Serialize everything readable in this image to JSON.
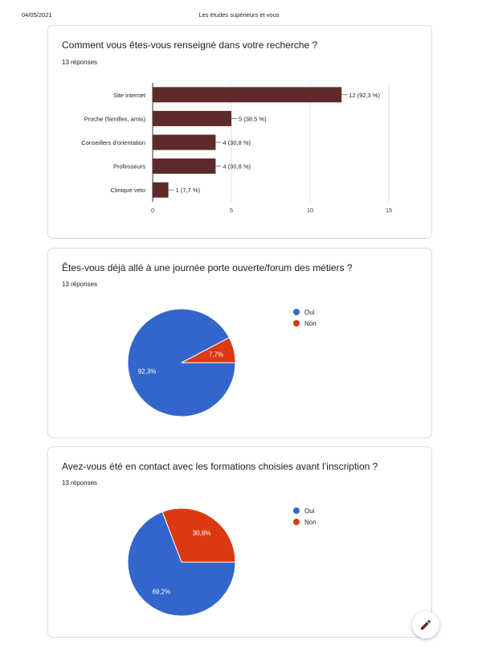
{
  "header": {
    "date": "04/05/2021",
    "title": "Les études supérieurs et vous"
  },
  "colors": {
    "bar": "#5e2a2b",
    "blue": "#3366cc",
    "red": "#dc3912",
    "grid": "#e0e0e0"
  },
  "cards": [
    {
      "question": "Comment vous êtes-vous renseigné dans votre recherche ?",
      "responses": "13 réponses"
    },
    {
      "question": "Êtes-vous déjà allé à une journée porte ouverte/forum des métiers ?",
      "responses": "13 réponses"
    },
    {
      "question": "Avez-vous été en contact avec les formations choisies avant l’inscription ?",
      "responses": "13 réponses"
    }
  ],
  "chart_data": [
    {
      "type": "bar",
      "orientation": "horizontal",
      "categories": [
        "Site internet",
        "Proche (familles, amis)",
        "Conseillers d'orientation",
        "Professeurs",
        "Clinique veto"
      ],
      "values": [
        12,
        5,
        4,
        4,
        1
      ],
      "data_labels": [
        "12 (92,3 %)",
        "5 (38,5 %)",
        "4 (30,8 %)",
        "4 (30,8 %)",
        "1 (7,7 %)"
      ],
      "xlim": [
        0,
        15
      ],
      "xticks": [
        "0",
        "5",
        "10",
        "15"
      ],
      "grid": true
    },
    {
      "type": "pie",
      "labels": [
        "Oui",
        "Non"
      ],
      "values": [
        92.3,
        7.7
      ],
      "value_labels": [
        "92,3%",
        "7,7%"
      ],
      "legend": "right"
    },
    {
      "type": "pie",
      "labels": [
        "Oui",
        "Non"
      ],
      "values": [
        69.2,
        30.8
      ],
      "value_labels": [
        "69,2%",
        "30,8%"
      ],
      "legend": "right"
    }
  ],
  "icons": {
    "fab": "pencil-icon"
  }
}
